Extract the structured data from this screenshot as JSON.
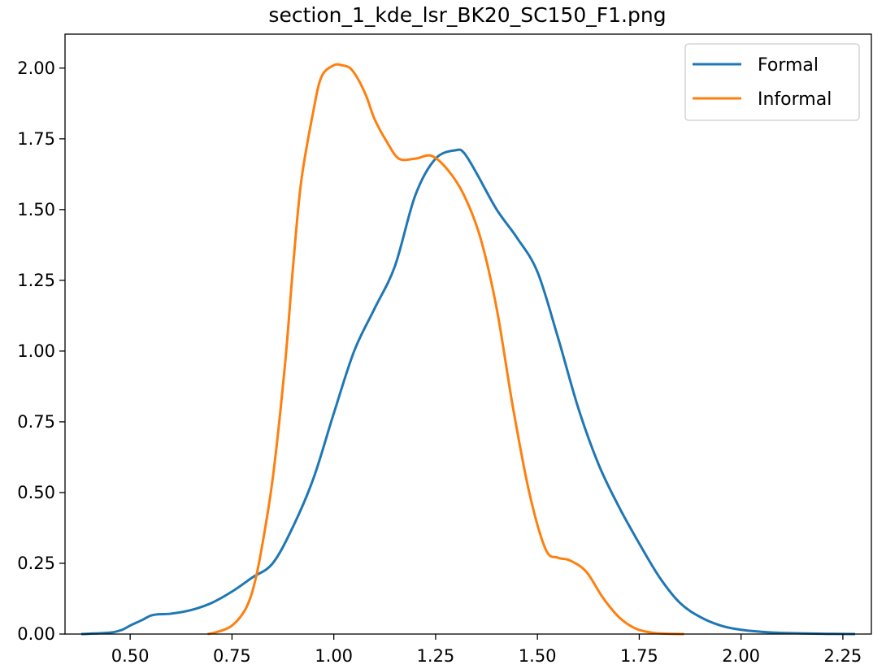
{
  "chart_data": {
    "type": "line",
    "title": "section_1_kde_lsr_BK20_SC150_F1.png",
    "xlabel": "",
    "ylabel": "",
    "xlim": [
      0.34,
      2.32
    ],
    "ylim": [
      0.0,
      2.12
    ],
    "xticks": [
      0.5,
      0.75,
      1.0,
      1.25,
      1.5,
      1.75,
      2.0,
      2.25
    ],
    "xtick_labels": [
      "0.50",
      "0.75",
      "1.00",
      "1.25",
      "1.50",
      "1.75",
      "2.00",
      "2.25"
    ],
    "yticks": [
      0.0,
      0.25,
      0.5,
      0.75,
      1.0,
      1.25,
      1.5,
      1.75,
      2.0
    ],
    "ytick_labels": [
      "0.00",
      "0.25",
      "0.50",
      "0.75",
      "1.00",
      "1.25",
      "1.50",
      "1.75",
      "2.00"
    ],
    "grid": false,
    "legend_position": "top-right",
    "series": [
      {
        "name": "Formal",
        "color": "#1f77b4",
        "x": [
          0.38,
          0.45,
          0.48,
          0.5,
          0.53,
          0.55,
          0.57,
          0.6,
          0.65,
          0.7,
          0.75,
          0.8,
          0.85,
          0.9,
          0.95,
          1.0,
          1.05,
          1.1,
          1.15,
          1.2,
          1.25,
          1.3,
          1.32,
          1.35,
          1.4,
          1.45,
          1.5,
          1.55,
          1.6,
          1.65,
          1.7,
          1.75,
          1.8,
          1.85,
          1.9,
          1.95,
          2.0,
          2.05,
          2.1,
          2.2,
          2.28
        ],
        "y": [
          0.0,
          0.005,
          0.015,
          0.03,
          0.05,
          0.065,
          0.07,
          0.072,
          0.085,
          0.11,
          0.15,
          0.2,
          0.25,
          0.38,
          0.55,
          0.78,
          1.0,
          1.15,
          1.3,
          1.55,
          1.68,
          1.71,
          1.7,
          1.63,
          1.5,
          1.4,
          1.28,
          1.05,
          0.8,
          0.6,
          0.45,
          0.32,
          0.2,
          0.11,
          0.06,
          0.03,
          0.015,
          0.008,
          0.004,
          0.001,
          0.0
        ]
      },
      {
        "name": "Informal",
        "color": "#ff7f0e",
        "x": [
          0.69,
          0.72,
          0.75,
          0.78,
          0.8,
          0.82,
          0.85,
          0.88,
          0.9,
          0.92,
          0.95,
          0.97,
          1.0,
          1.02,
          1.04,
          1.06,
          1.08,
          1.1,
          1.13,
          1.16,
          1.2,
          1.24,
          1.28,
          1.32,
          1.36,
          1.4,
          1.44,
          1.48,
          1.52,
          1.55,
          1.58,
          1.62,
          1.66,
          1.7,
          1.74,
          1.78,
          1.82,
          1.86
        ],
        "y": [
          0.0,
          0.01,
          0.03,
          0.08,
          0.15,
          0.28,
          0.55,
          0.95,
          1.3,
          1.6,
          1.85,
          1.97,
          2.01,
          2.01,
          2.0,
          1.96,
          1.9,
          1.82,
          1.74,
          1.68,
          1.68,
          1.69,
          1.64,
          1.55,
          1.4,
          1.15,
          0.8,
          0.5,
          0.3,
          0.27,
          0.26,
          0.22,
          0.13,
          0.06,
          0.02,
          0.005,
          0.001,
          0.0
        ]
      }
    ]
  }
}
